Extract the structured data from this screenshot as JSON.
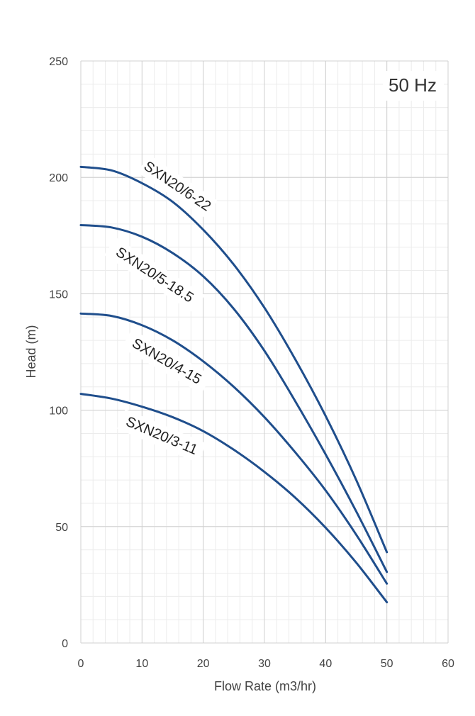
{
  "chart_data": {
    "type": "line",
    "title": "",
    "annotation": "50 Hz",
    "xlabel": "Flow Rate (m3/hr)",
    "ylabel": "Head (m)",
    "xlim": [
      0,
      60
    ],
    "ylim": [
      0,
      250
    ],
    "x_ticks": [
      0,
      10,
      20,
      30,
      40,
      50,
      60
    ],
    "y_ticks": [
      0,
      50,
      100,
      150,
      200,
      250
    ],
    "x_minor_step": 2,
    "y_minor_step": 10,
    "grid": true,
    "line_color": "#1f4e8c",
    "x": [
      0,
      5,
      10,
      15,
      20,
      25,
      30,
      35,
      40,
      45,
      50
    ],
    "series": [
      {
        "name": "SXN20/6-22",
        "values": [
          204.5,
          203.0,
          197.5,
          189.5,
          177.5,
          162.5,
          144.0,
          122.0,
          97.5,
          70.0,
          39.0
        ]
      },
      {
        "name": "SXN20/5-18.5",
        "values": [
          179.5,
          178.5,
          174.5,
          167.5,
          157.5,
          143.5,
          125.5,
          104.0,
          81.0,
          56.5,
          30.5
        ]
      },
      {
        "name": "SXN20/4-15",
        "values": [
          141.5,
          140.5,
          136.5,
          130.0,
          121.0,
          110.0,
          97.0,
          82.0,
          65.5,
          46.5,
          25.5
        ]
      },
      {
        "name": "SXN20/3-11",
        "values": [
          107.0,
          105.0,
          101.5,
          97.0,
          91.0,
          83.0,
          73.5,
          62.5,
          49.5,
          34.5,
          17.5
        ]
      }
    ]
  }
}
